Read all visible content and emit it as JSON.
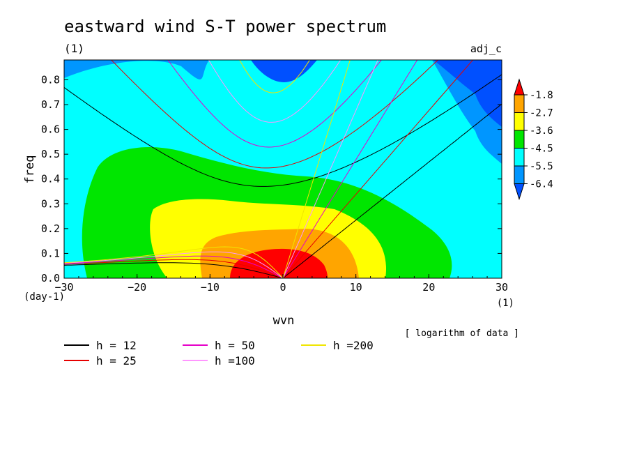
{
  "chart_data": {
    "type": "heatmap",
    "title": "eastward wind S-T power spectrum",
    "subtitle_left": "(1)",
    "subtitle_right": "adj_c",
    "xlabel": "wvn",
    "ylabel": "freq",
    "x_unit": "(1)",
    "y_unit": "(day-1)",
    "xlim": [
      -30,
      30
    ],
    "ylim": [
      0,
      0.88
    ],
    "x_ticks": [
      "−30",
      "−20",
      "−10",
      "0",
      "10",
      "20",
      "30"
    ],
    "y_ticks": [
      "0.0",
      "0.1",
      "0.2",
      "0.3",
      "0.4",
      "0.5",
      "0.6",
      "0.7",
      "0.8"
    ],
    "note": "[ logarithm of data ]",
    "colorbar": {
      "levels": [
        "-1.8",
        "-2.7",
        "-3.6",
        "-4.5",
        "-5.5",
        "-6.4"
      ],
      "colors": [
        "#ff0000",
        "#ffa500",
        "#ffff00",
        "#00e600",
        "#00ffff",
        "#0096ff",
        "#0050ff",
        "#e60000"
      ]
    },
    "fill_levels": [
      {
        "level": "< -6.4",
        "color": "#0050ff"
      },
      {
        "level": "-6.4 to -5.5",
        "color": "#0096ff"
      },
      {
        "level": "-5.5 to -4.5",
        "color": "#00ffff"
      },
      {
        "level": "-4.5 to -3.6",
        "color": "#00e600"
      },
      {
        "level": "-3.6 to -2.7",
        "color": "#ffff00"
      },
      {
        "level": "-2.7 to -1.8",
        "color": "#ffa500"
      },
      {
        "level": "> -1.8",
        "color": "#ff0000"
      }
    ],
    "series": [
      {
        "name": "h = 12",
        "color": "#000000",
        "h": 12
      },
      {
        "name": "h = 25",
        "color": "#e60000",
        "h": 25
      },
      {
        "name": "h = 50",
        "color": "#e600c8",
        "h": 50
      },
      {
        "name": "h =100",
        "color": "#ff96ff",
        "h": 100
      },
      {
        "name": "h =200",
        "color": "#f0e600",
        "h": 200
      }
    ]
  }
}
